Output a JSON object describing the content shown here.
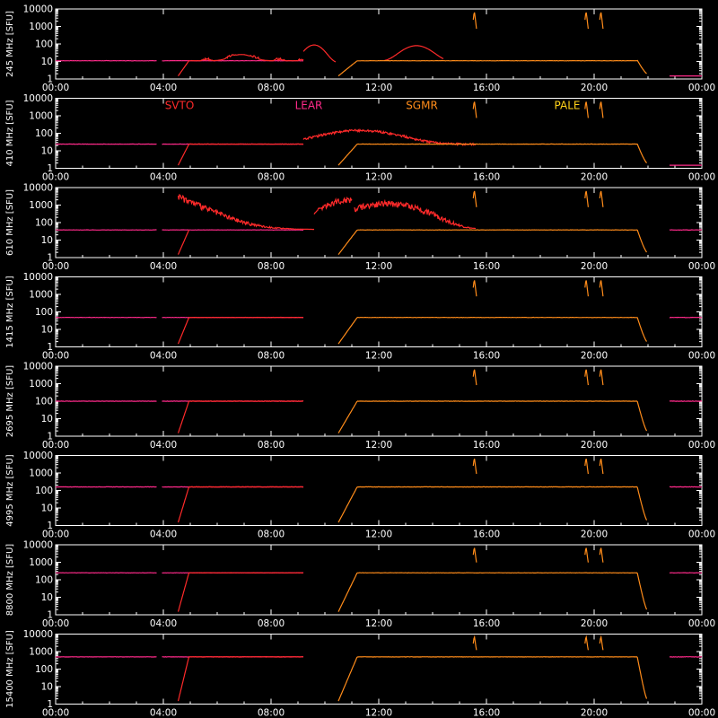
{
  "colors": {
    "background": "#000000",
    "axes": "#ffffff",
    "SVTO": "#ff2a2a",
    "LEAR": "#ff2a8a",
    "SGMR": "#ff8c1a",
    "PALE": "#ffd21a"
  },
  "station_labels": [
    "SVTO",
    "LEAR",
    "SGMR",
    "PALE"
  ],
  "chart_data": {
    "type": "line",
    "x_ticks": [
      "00:00",
      "04:00",
      "08:00",
      "12:00",
      "16:00",
      "20:00",
      "00:00"
    ],
    "x_range_hours": [
      0,
      24
    ],
    "y_scale": "log",
    "y_ticks": [
      "1",
      "10",
      "100",
      "1000",
      "10000"
    ],
    "y_range": [
      1,
      10000
    ],
    "grid": false,
    "legend": "station labels printed in the 410 MHz panel",
    "panels": [
      {
        "ylabel": "245 MHz [SFU]",
        "baseline": 11
      },
      {
        "ylabel": "410 MHz [SFU]",
        "baseline": 24
      },
      {
        "ylabel": "610 MHz [SFU]",
        "baseline": 38
      },
      {
        "ylabel": "1415 MHz [SFU]",
        "baseline": 48
      },
      {
        "ylabel": "2695 MHz [SFU]",
        "baseline": 100
      },
      {
        "ylabel": "4995 MHz [SFU]",
        "baseline": 160
      },
      {
        "ylabel": "8800 MHz [SFU]",
        "baseline": 250
      },
      {
        "ylabel": "15400 MHz [SFU]",
        "baseline": 500
      }
    ],
    "series": [
      {
        "name": "SVTO",
        "x_range_hours": [
          0,
          9.2
        ]
      },
      {
        "name": "LEAR",
        "x_range_hours": [
          0,
          9.2
        ]
      },
      {
        "name": "SGMR",
        "x_range_hours": [
          10.5,
          21.9
        ]
      },
      {
        "name": "PALE",
        "x_range_hours": [
          22.8,
          24
        ]
      }
    ],
    "events_hours": [
      15.55,
      19.7,
      20.25
    ]
  }
}
